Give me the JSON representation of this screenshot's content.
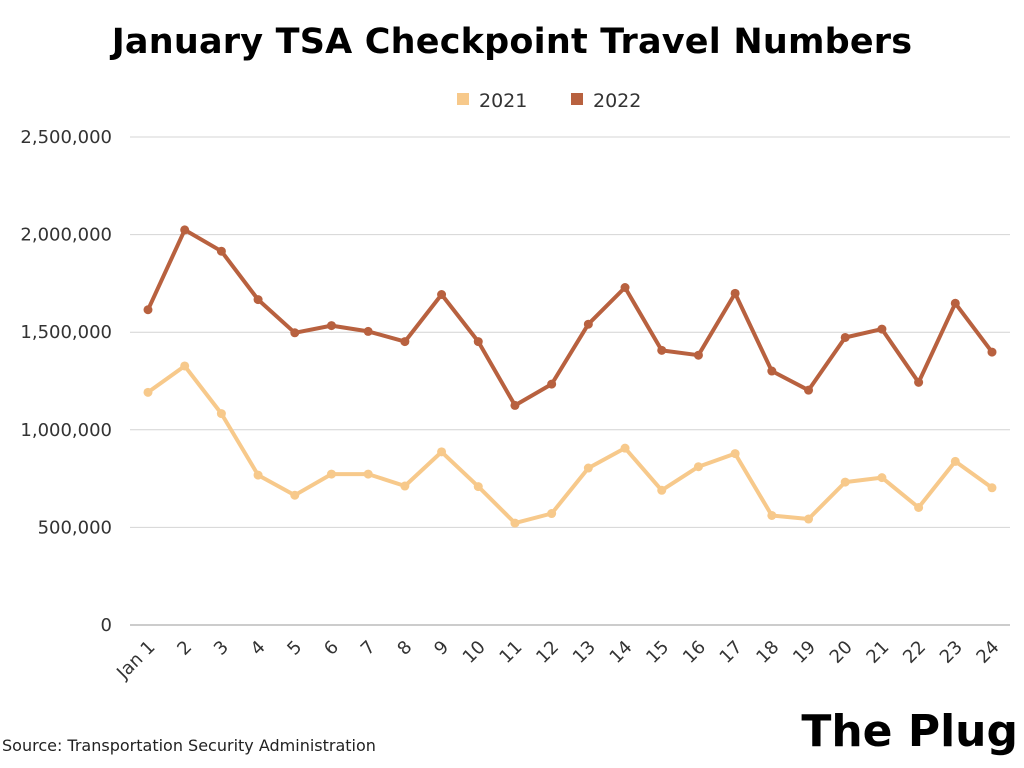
{
  "chart_data": {
    "type": "line",
    "title": "January TSA Checkpoint Travel Numbers",
    "categories": [
      "Jan 1",
      "2",
      "3",
      "4",
      "5",
      "6",
      "7",
      "8",
      "9",
      "10",
      "11",
      "12",
      "13",
      "14",
      "15",
      "16",
      "17",
      "18",
      "19",
      "20",
      "21",
      "22",
      "23",
      "24"
    ],
    "series": [
      {
        "name": "2021",
        "color": "#F7C98B",
        "values": [
          1192000,
          1327000,
          1083000,
          768000,
          665000,
          773000,
          773000,
          712000,
          887000,
          709000,
          522000,
          571000,
          804000,
          906000,
          690000,
          811000,
          878000,
          561000,
          543000,
          732000,
          755000,
          602000,
          838000,
          703000
        ]
      },
      {
        "name": "2022",
        "color": "#B8613F",
        "values": [
          1615000,
          2024000,
          1915000,
          1667000,
          1497000,
          1534000,
          1504000,
          1452000,
          1693000,
          1452000,
          1125000,
          1234000,
          1541000,
          1729000,
          1407000,
          1382000,
          1699000,
          1301000,
          1203000,
          1473000,
          1516000,
          1243000,
          1648000,
          1398000
        ]
      }
    ],
    "yticks": [
      "0",
      "500,000",
      "1,000,000",
      "1,500,000",
      "2,000,000",
      "2,500,000"
    ],
    "ylim": [
      0,
      2500000
    ],
    "grid": true,
    "legend_position": "top-center"
  },
  "footer": {
    "source": "Source: Transportation Security Administration",
    "brand": "The Plug"
  }
}
